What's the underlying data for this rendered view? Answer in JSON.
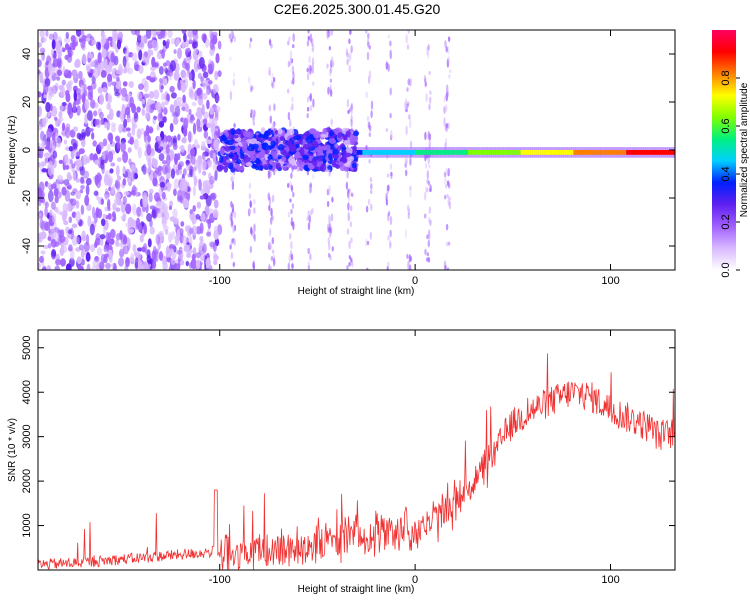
{
  "title": "C2E6.2025.300.01.45.G20",
  "colors": {
    "snr_line": "#f03030",
    "ridge_low": "#3fd0f0",
    "ridge_high": "#e00030",
    "scatter": "#7a20f0",
    "colorbar": [
      "#ffffff",
      "#d8b8ff",
      "#a060ff",
      "#6020f0",
      "#0020ff",
      "#00d0ff",
      "#00f080",
      "#80ff00",
      "#ffff00",
      "#ff8000",
      "#ff0000",
      "#ff0060"
    ]
  },
  "chart_data": [
    {
      "name": "spectrogram",
      "type": "heatmap",
      "title": "C2E6.2025.300.01.45.G20",
      "xlabel": "Height of straight line (km)",
      "ylabel": "Frequency (Hz)",
      "xlim": [
        -193,
        133
      ],
      "ylim": [
        -50,
        50
      ],
      "x_ticks": [
        -100,
        0,
        100
      ],
      "x_tick_labels": [
        "-100",
        "0",
        "100"
      ],
      "y_ticks": [
        -40,
        -20,
        0,
        20,
        40
      ],
      "y_tick_labels": [
        "-40",
        "-20",
        "0",
        "20",
        "40"
      ],
      "colorbar": {
        "label": "Normalized spectral amplitude",
        "range": [
          0,
          1
        ],
        "ticks": [
          0.0,
          0.2,
          0.4,
          0.6,
          0.8
        ],
        "tick_labels": [
          "0.0",
          "0.2",
          "0.4",
          "0.6",
          "0.8"
        ]
      },
      "regions": [
        {
          "x_range": [
            -193,
            -100
          ],
          "description": "broadband noise, amplitude 0.1-0.2"
        },
        {
          "x_range": [
            -100,
            -30
          ],
          "freq_center": 0,
          "freq_spread": 8,
          "amplitude": 0.3
        },
        {
          "x_range": [
            -30,
            133
          ],
          "freq_center": -1,
          "freq_spread": 2,
          "amplitude_start": 0.4,
          "amplitude_end": 0.95
        }
      ]
    },
    {
      "name": "snr",
      "type": "line",
      "xlabel": "Height of straight line (km)",
      "ylabel": "SNR (10 * v/v)",
      "xlim": [
        -193,
        133
      ],
      "ylim": [
        0,
        5400
      ],
      "x_ticks": [
        -100,
        0,
        100
      ],
      "x_tick_labels": [
        "-100",
        "0",
        "100"
      ],
      "y_ticks": [
        1000,
        2000,
        3000,
        4000,
        5000
      ],
      "y_tick_labels": [
        "1000",
        "2000",
        "3000",
        "4000",
        "5000"
      ],
      "series": [
        {
          "name": "SNR",
          "x": [
            -193,
            -170,
            -150,
            -130,
            -110,
            -102,
            -100,
            -95,
            -90,
            -80,
            -70,
            -60,
            -50,
            -40,
            -30,
            -20,
            -10,
            0,
            10,
            20,
            30,
            40,
            45,
            50,
            60,
            70,
            80,
            90,
            100,
            110,
            120,
            125,
            133
          ],
          "values": [
            120,
            170,
            240,
            310,
            380,
            420,
            280,
            300,
            340,
            400,
            450,
            520,
            600,
            680,
            760,
            820,
            880,
            900,
            1100,
            1500,
            2000,
            2500,
            3000,
            3300,
            3600,
            3800,
            4000,
            3900,
            3600,
            3400,
            3200,
            3000,
            3100
          ]
        }
      ]
    }
  ]
}
